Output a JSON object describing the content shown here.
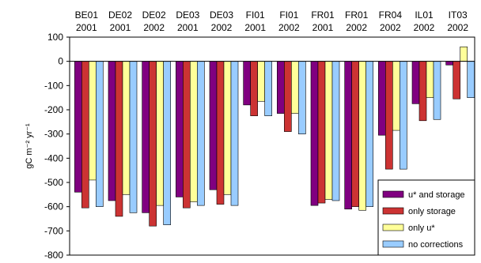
{
  "chart_data": {
    "type": "bar",
    "categories": [
      {
        "site": "BE01",
        "year": "2001"
      },
      {
        "site": "DE02",
        "year": "2001"
      },
      {
        "site": "DE02",
        "year": "2002"
      },
      {
        "site": "DE03",
        "year": "2001"
      },
      {
        "site": "DE03",
        "year": "2002"
      },
      {
        "site": "FI01",
        "year": "2001"
      },
      {
        "site": "FI01",
        "year": "2002"
      },
      {
        "site": "FR01",
        "year": "2001"
      },
      {
        "site": "FR01",
        "year": "2002"
      },
      {
        "site": "FR04",
        "year": "2002"
      },
      {
        "site": "IL01",
        "year": "2002"
      },
      {
        "site": "IT03",
        "year": "2002"
      }
    ],
    "series": [
      {
        "name": "u* and storage",
        "color": "#800080",
        "values": [
          -540,
          -575,
          -625,
          -560,
          -530,
          -180,
          -215,
          -595,
          -610,
          -305,
          -175,
          -15
        ]
      },
      {
        "name": "only storage",
        "color": "#cc3333",
        "values": [
          -605,
          -640,
          -680,
          -605,
          -590,
          -225,
          -290,
          -585,
          -600,
          -445,
          -245,
          -155
        ]
      },
      {
        "name": "only u*",
        "color": "#ffff99",
        "values": [
          -490,
          -550,
          -595,
          -580,
          -550,
          -165,
          -215,
          -570,
          -615,
          -285,
          -150,
          60
        ]
      },
      {
        "name": "no corrections",
        "color": "#99ccff",
        "values": [
          -600,
          -625,
          -675,
          -595,
          -595,
          -225,
          -300,
          -575,
          -600,
          -445,
          -240,
          -150
        ]
      }
    ],
    "ylabel": "gC m⁻² yr⁻¹",
    "ylim": [
      -800,
      100
    ],
    "yticks": [
      100,
      0,
      -100,
      -200,
      -300,
      -400,
      -500,
      -600,
      -700,
      -800
    ],
    "grid": false,
    "legend_position": "bottom-right"
  }
}
